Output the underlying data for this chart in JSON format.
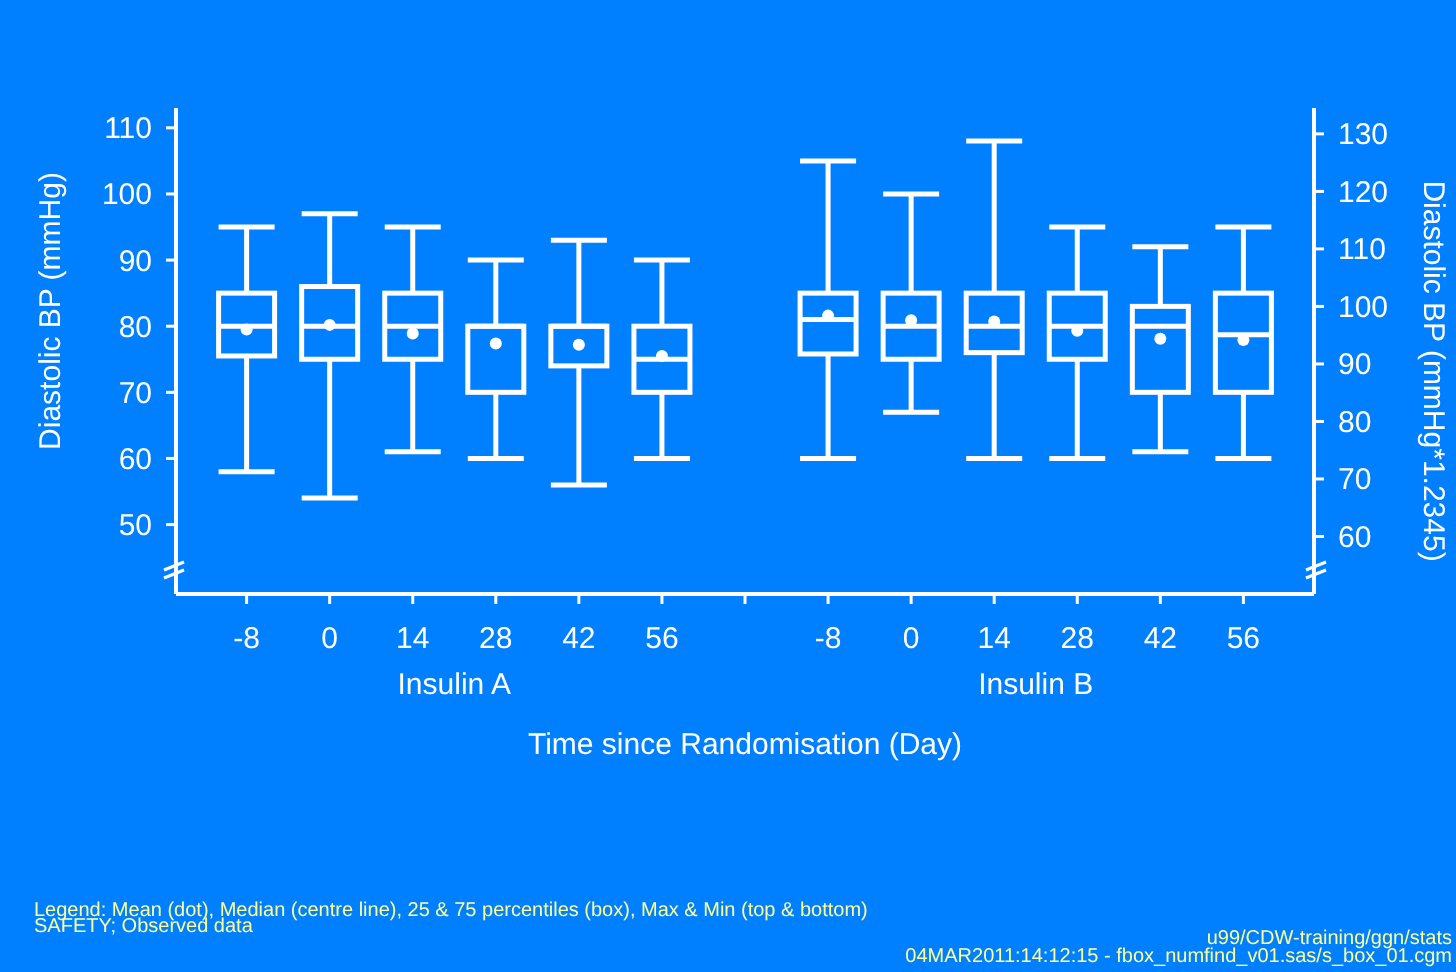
{
  "chart_data": {
    "type": "box",
    "categories": [
      "-8",
      "0",
      "14",
      "28",
      "42",
      "56",
      null,
      "-8",
      "0",
      "14",
      "28",
      "42",
      "56"
    ],
    "boxes": [
      {
        "low": 58,
        "q1": 75.5,
        "median": 80,
        "q3": 85,
        "high": 95,
        "mean": 79.5
      },
      {
        "low": 54,
        "q1": 75,
        "median": 80,
        "q3": 86,
        "high": 97,
        "mean": 80.2
      },
      {
        "low": 61,
        "q1": 75,
        "median": 80,
        "q3": 85,
        "high": 95,
        "mean": 78.9
      },
      {
        "low": 60,
        "q1": 70,
        "median": 80,
        "q3": 80,
        "high": 90,
        "mean": 77.4
      },
      {
        "low": 56,
        "q1": 74,
        "median": 80,
        "q3": 80,
        "high": 93,
        "mean": 77.2
      },
      {
        "low": 60,
        "q1": 70,
        "median": 75,
        "q3": 80,
        "high": 90,
        "mean": 75.5
      },
      null,
      {
        "low": 60,
        "q1": 75.8,
        "median": 81,
        "q3": 85,
        "high": 105,
        "mean": 81.6
      },
      {
        "low": 67,
        "q1": 75,
        "median": 80,
        "q3": 85,
        "high": 100,
        "mean": 80.9
      },
      {
        "low": 60,
        "q1": 76,
        "median": 80,
        "q3": 85,
        "high": 108,
        "mean": 80.7
      },
      {
        "low": 60,
        "q1": 75,
        "median": 80,
        "q3": 85,
        "high": 95,
        "mean": 79.3
      },
      {
        "low": 61,
        "q1": 70,
        "median": 80,
        "q3": 83,
        "high": 92,
        "mean": 78.1
      },
      {
        "low": 60,
        "q1": 70,
        "median": 78.7,
        "q3": 85,
        "high": 95,
        "mean": 77.9
      }
    ],
    "color": "#ffffff",
    "xlabel": "Time since Randomisation (Day)",
    "ylabel": "Diastolic BP (mmHg)",
    "y2label": "Diastolic BP (mmHg*1.2345)",
    "ylim": [
      39.5,
      113
    ],
    "yticks": [
      50,
      60,
      70,
      80,
      90,
      100,
      110
    ],
    "y2lim": [
      50,
      134.5
    ],
    "y2ticks": [
      60,
      70,
      80,
      90,
      100,
      110,
      120,
      130
    ],
    "marker": "circle",
    "grid": false,
    "annotations": [
      "Insulin A",
      "Insulin B",
      "Legend: Mean (dot), Median (centre line), 25 & 75 percentiles (box), Max & Min (top & bottom)",
      "SAFETY; Observed data",
      "u99/CDW-training/ggn/stats",
      "04MAR2011:14:12:15 - fbox_numfind_v01.sas/s_box_01.cgm"
    ]
  }
}
